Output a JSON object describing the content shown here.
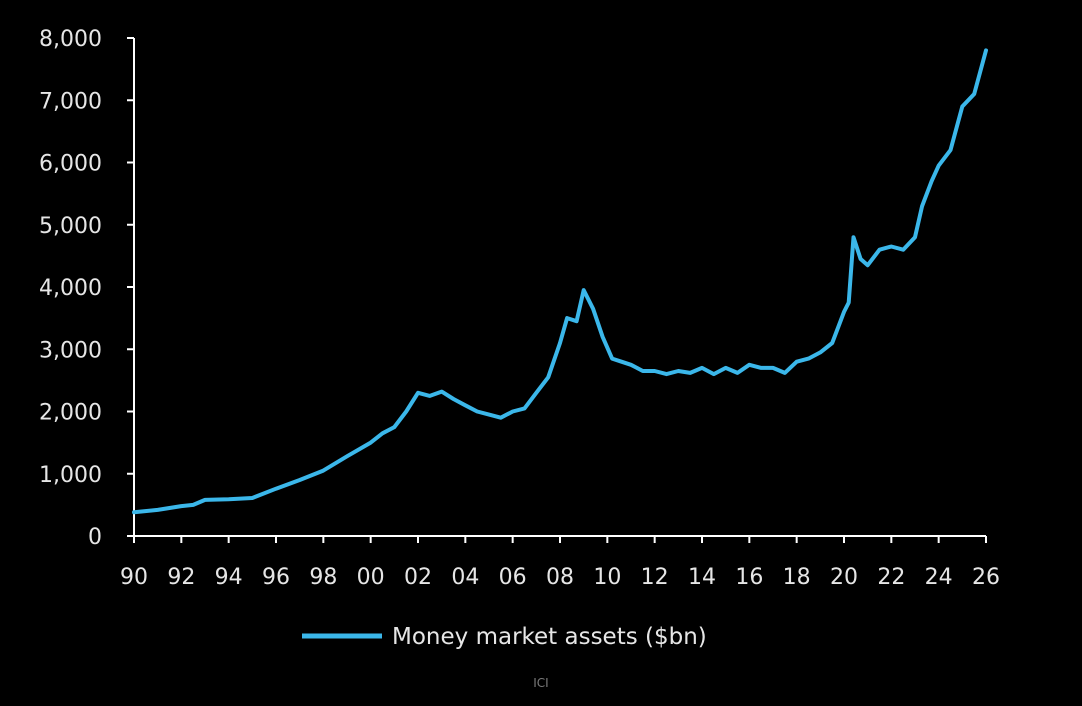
{
  "chart_data": {
    "type": "line",
    "title": "",
    "xlabel": "",
    "ylabel": "",
    "xlim": [
      1990,
      2026
    ],
    "ylim": [
      0,
      8000
    ],
    "x_ticks": [
      1990,
      1992,
      1994,
      1996,
      1998,
      2000,
      2002,
      2004,
      2006,
      2008,
      2010,
      2012,
      2014,
      2016,
      2018,
      2020,
      2022,
      2024,
      2026
    ],
    "x_tick_labels": [
      "90",
      "92",
      "94",
      "96",
      "98",
      "00",
      "02",
      "04",
      "06",
      "08",
      "10",
      "12",
      "14",
      "16",
      "18",
      "20",
      "22",
      "24",
      "26"
    ],
    "y_ticks": [
      0,
      1000,
      2000,
      3000,
      4000,
      5000,
      6000,
      7000,
      8000
    ],
    "y_tick_labels": [
      "0",
      "1,000",
      "2,000",
      "3,000",
      "4,000",
      "5,000",
      "6,000",
      "7,000",
      "8,000"
    ],
    "grid": false,
    "legend_position": "bottom",
    "series": [
      {
        "name": "Money market assets ($bn)",
        "color": "#3bb7ea",
        "x": [
          1990,
          1991,
          1992,
          1992.5,
          1993,
          1994,
          1995,
          1996,
          1997,
          1998,
          1999,
          2000,
          2000.5,
          2001,
          2001.5,
          2002,
          2002.5,
          2003,
          2003.5,
          2004,
          2004.5,
          2005,
          2005.5,
          2006,
          2006.5,
          2007,
          2007.5,
          2008,
          2008.3,
          2008.7,
          2009,
          2009.4,
          2009.8,
          2010.2,
          2010.6,
          2011,
          2011.5,
          2012,
          2012.5,
          2013,
          2013.5,
          2014,
          2014.5,
          2015,
          2015.5,
          2016,
          2016.5,
          2017,
          2017.5,
          2018,
          2018.5,
          2019,
          2019.5,
          2020,
          2020.2,
          2020.4,
          2020.7,
          2021,
          2021.5,
          2022,
          2022.5,
          2023,
          2023.3,
          2023.7,
          2024,
          2024.5,
          2025,
          2025.5,
          2026
        ],
        "values": [
          380,
          420,
          480,
          500,
          580,
          590,
          610,
          760,
          900,
          1050,
          1280,
          1500,
          1650,
          1750,
          2000,
          2300,
          2250,
          2320,
          2200,
          2100,
          2000,
          1950,
          1900,
          2000,
          2050,
          2300,
          2550,
          3100,
          3500,
          3450,
          3950,
          3650,
          3200,
          2850,
          2800,
          2750,
          2650,
          2650,
          2600,
          2650,
          2620,
          2700,
          2600,
          2700,
          2620,
          2750,
          2700,
          2700,
          2620,
          2800,
          2850,
          2950,
          3100,
          3600,
          3750,
          4800,
          4450,
          4350,
          4600,
          4650,
          4600,
          4800,
          5300,
          5700,
          5950,
          6200,
          6900,
          7100,
          7800
        ]
      }
    ]
  },
  "source": "ICI"
}
